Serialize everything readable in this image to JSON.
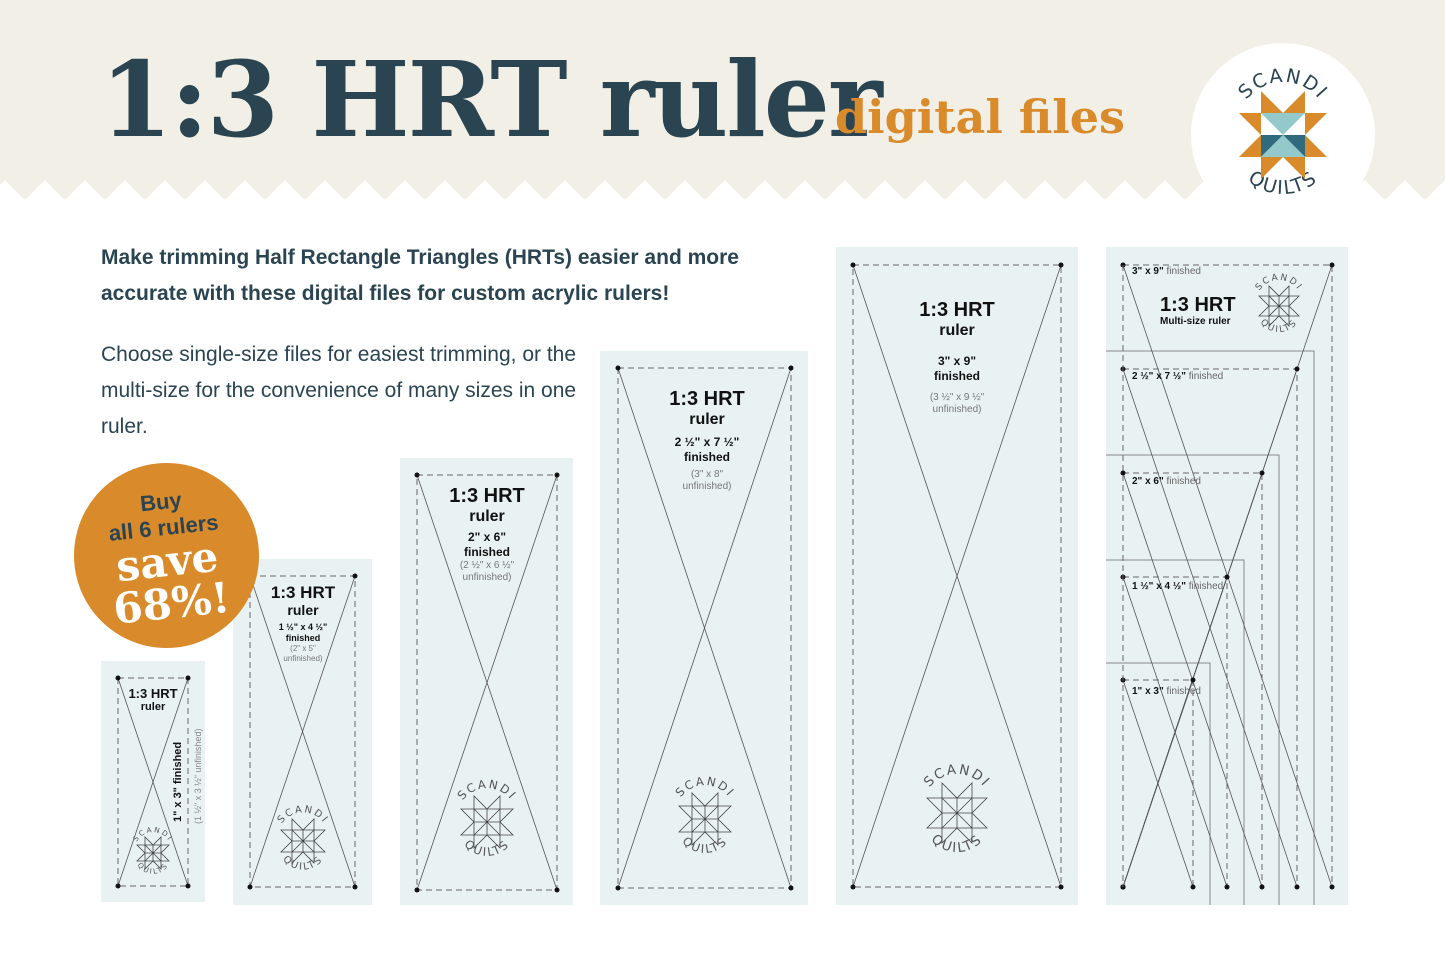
{
  "header": {
    "title": "1:3 HRT ruler",
    "subtitle": "digital files",
    "logo": {
      "top": "SCANDI",
      "bottom": "QUILTS",
      "icon": "star-quilt-block-logo"
    }
  },
  "intro": {
    "lead": "Make trimming Half Rectangle Triangles (HRTs) easier and more accurate with these digital files for custom acrylic rulers!",
    "body": "Choose single-size files for easiest trimming, or the multi-size for the convenience of many sizes in one ruler."
  },
  "badge": {
    "line1": "Buy",
    "line2": "all 6 rulers",
    "line3": "save",
    "line4": "68%!"
  },
  "rulers": [
    {
      "title": "1:3 HRT",
      "sub": "ruler",
      "finished": "1\" x 3\" finished",
      "unfinished": "(1 ½\" x 3 ½\" unfinished)"
    },
    {
      "title": "1:3 HRT",
      "sub": "ruler",
      "finished": "1 ½\" x 4 ½\"",
      "finished2": "finished",
      "unfinished": "(2\" x 5\"",
      "unfinished2": "unfinished)"
    },
    {
      "title": "1:3 HRT",
      "sub": "ruler",
      "finished": "2\" x 6\"",
      "finished2": "finished",
      "unfinished": "(2 ½\" x 6 ½\"",
      "unfinished2": "unfinished)"
    },
    {
      "title": "1:3 HRT",
      "sub": "ruler",
      "finished": "2 ½\" x 7 ½\"",
      "finished2": "finished",
      "unfinished": "(3\" x 8\"",
      "unfinished2": "unfinished)"
    },
    {
      "title": "1:3 HRT",
      "sub": "ruler",
      "finished": "3\" x 9\"",
      "finished2": "finished",
      "unfinished": "(3 ½\" x 9 ½\"",
      "unfinished2": "unfinished)"
    }
  ],
  "multi": {
    "title": "1:3 HRT",
    "sub": "Multi-size ruler",
    "sizes": [
      {
        "size": "3\" x 9\"",
        "label": "finished"
      },
      {
        "size": "2 ½\" x 7 ½\"",
        "label": "finished"
      },
      {
        "size": "2\" x 6\"",
        "label": "finished"
      },
      {
        "size": "1 ½\" x 4 ½\"",
        "label": "finished"
      },
      {
        "size": "1\" x 3\"",
        "label": "finished"
      }
    ]
  },
  "colors": {
    "navy": "#2a4452",
    "orange": "#d98a2a",
    "cream": "#f2f0e6",
    "panel": "#e9f2f3",
    "teal_light": "#94c9cb",
    "teal_dark": "#2f6b7c"
  }
}
